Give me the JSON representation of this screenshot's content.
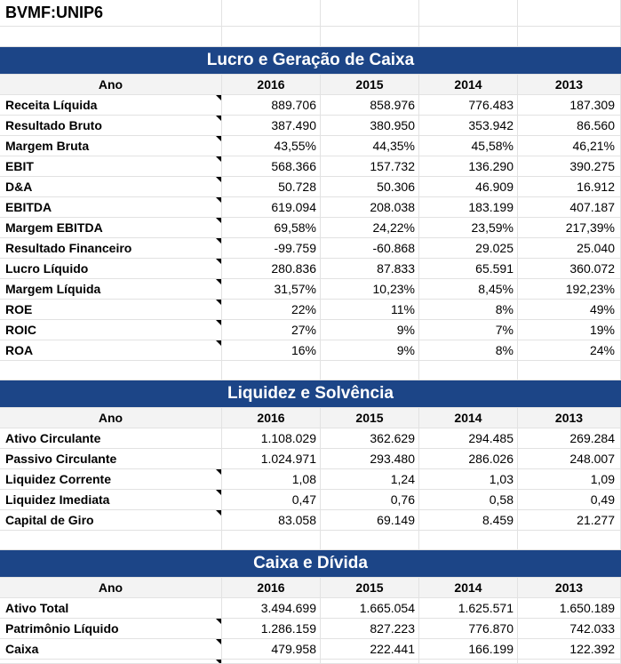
{
  "title": "BVMF:UNIP6",
  "sections": [
    {
      "heading": "Lucro e Geração de Caixa",
      "header": [
        "Ano",
        "2016",
        "2015",
        "2014",
        "2013"
      ],
      "rows": [
        [
          "Receita Líquida",
          "889.706",
          "858.976",
          "776.483",
          "187.309"
        ],
        [
          "Resultado Bruto",
          "387.490",
          "380.950",
          "353.942",
          "86.560"
        ],
        [
          "Margem Bruta",
          "43,55%",
          "44,35%",
          "45,58%",
          "46,21%"
        ],
        [
          "EBIT",
          "568.366",
          "157.732",
          "136.290",
          "390.275"
        ],
        [
          "D&A",
          "50.728",
          "50.306",
          "46.909",
          "16.912"
        ],
        [
          "EBITDA",
          "619.094",
          "208.038",
          "183.199",
          "407.187"
        ],
        [
          "Margem EBITDA",
          "69,58%",
          "24,22%",
          "23,59%",
          "217,39%"
        ],
        [
          "Resultado Financeiro",
          "-99.759",
          "-60.868",
          "29.025",
          "25.040"
        ],
        [
          "Lucro Líquido",
          "280.836",
          "87.833",
          "65.591",
          "360.072"
        ],
        [
          "Margem Líquida",
          "31,57%",
          "10,23%",
          "8,45%",
          "192,23%"
        ],
        [
          "ROE",
          "22%",
          "11%",
          "8%",
          "49%"
        ],
        [
          "ROIC",
          "27%",
          "9%",
          "7%",
          "19%"
        ],
        [
          "ROA",
          "16%",
          "9%",
          "8%",
          "24%"
        ]
      ]
    },
    {
      "heading": "Liquidez e Solvência",
      "header": [
        "Ano",
        "2016",
        "2015",
        "2014",
        "2013"
      ],
      "rows": [
        [
          "Ativo Circulante",
          "1.108.029",
          "362.629",
          "294.485",
          "269.284"
        ],
        [
          "Passivo Circulante",
          "1.024.971",
          "293.480",
          "286.026",
          "248.007"
        ],
        [
          "Liquidez Corrente",
          "1,08",
          "1,24",
          "1,03",
          "1,09"
        ],
        [
          "Liquidez Imediata",
          "0,47",
          "0,76",
          "0,58",
          "0,49"
        ],
        [
          "Capital de Giro",
          "83.058",
          "69.149",
          "8.459",
          "21.277"
        ]
      ]
    },
    {
      "heading": "Caixa e Dívida",
      "header": [
        "Ano",
        "2016",
        "2015",
        "2014",
        "2013"
      ],
      "rows": [
        [
          "Ativo Total",
          "3.494.699",
          "1.665.054",
          "1.625.571",
          "1.650.189"
        ],
        [
          "Patrimônio Líquido",
          "1.286.159",
          "827.223",
          "776.870",
          "742.033"
        ],
        [
          "Caixa",
          "479.958",
          "222.441",
          "166.199",
          "122.392"
        ]
      ]
    }
  ],
  "colors": {
    "band": "#1c4587",
    "header_bg": "#f3f3f3",
    "grid": "#e2e2e2"
  }
}
